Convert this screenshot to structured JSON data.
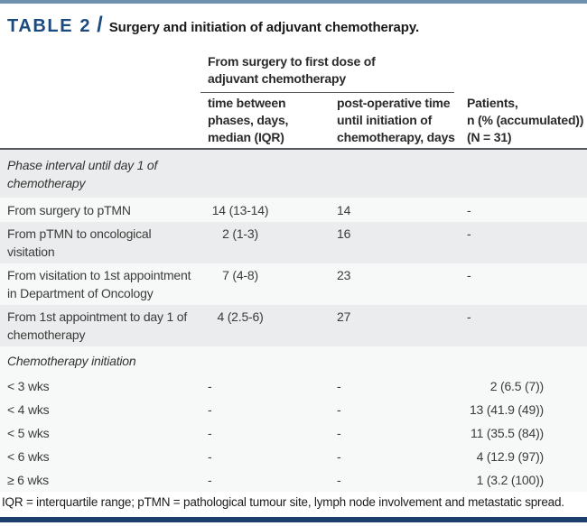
{
  "title": {
    "prefix": "TABLE 2",
    "slash": "/",
    "text": "Surgery and initiation of adjuvant chemotherapy."
  },
  "table": {
    "span_header": "From surgery to first dose of\nadjuvant chemotherapy",
    "col_headers": {
      "time_between": "time between\nphases, days,\nmedian (IQR)",
      "postop_time": "post-operative time\nuntil initiation of\nchemotherapy, days",
      "patients": "Patients,\nn (% (accumulated))\n(N = 31)"
    },
    "rows": [
      {
        "label": "Phase interval until day 1 of chemotherapy",
        "c2": "",
        "c3": "",
        "c4": ""
      },
      {
        "label": "From surgery to pTMN",
        "c2": "14 (13-14)",
        "c3": "14",
        "c4": "-"
      },
      {
        "label": "From pTMN to oncological visitation",
        "c2": "2 (1-3)",
        "c3": "16",
        "c4": "-"
      },
      {
        "label": "From visitation to 1st appointment in Department of Oncology",
        "c2": "7 (4-8)",
        "c3": "23",
        "c4": "-"
      },
      {
        "label": "From 1st appointment to day 1 of chemotherapy",
        "c2": "4 (2.5-6)",
        "c3": "27",
        "c4": "-"
      },
      {
        "label": "Chemotherapy initiation",
        "c2": "",
        "c3": "",
        "c4": ""
      },
      {
        "label": "< 3 wks",
        "c2": "-",
        "c3": "-",
        "c4": "2 (6.5 (7))"
      },
      {
        "label": "< 4 wks",
        "c2": "-",
        "c3": "-",
        "c4": "13 (41.9 (49))"
      },
      {
        "label": "< 5 wks",
        "c2": "-",
        "c3": "-",
        "c4": "11 (35.5 (84))"
      },
      {
        "label": "< 6 wks",
        "c2": "-",
        "c3": "-",
        "c4": "4 (12.9 (97))"
      },
      {
        "label": "≥ 6 wks",
        "c2": "-",
        "c3": "-",
        "c4": "1 (3.2 (100))"
      }
    ]
  },
  "footnote": "IQR = interquartile range; pTMN = pathological tumour site, lymph node involvement and metastatic spread.",
  "colors": {
    "accent_navy": "#1b4a7e",
    "top_bar_blue": "#6e8fae",
    "bottom_bar_navy": "#1b3f6e",
    "row_gray": "#ebeced",
    "row_light": "#f7f8f8"
  }
}
